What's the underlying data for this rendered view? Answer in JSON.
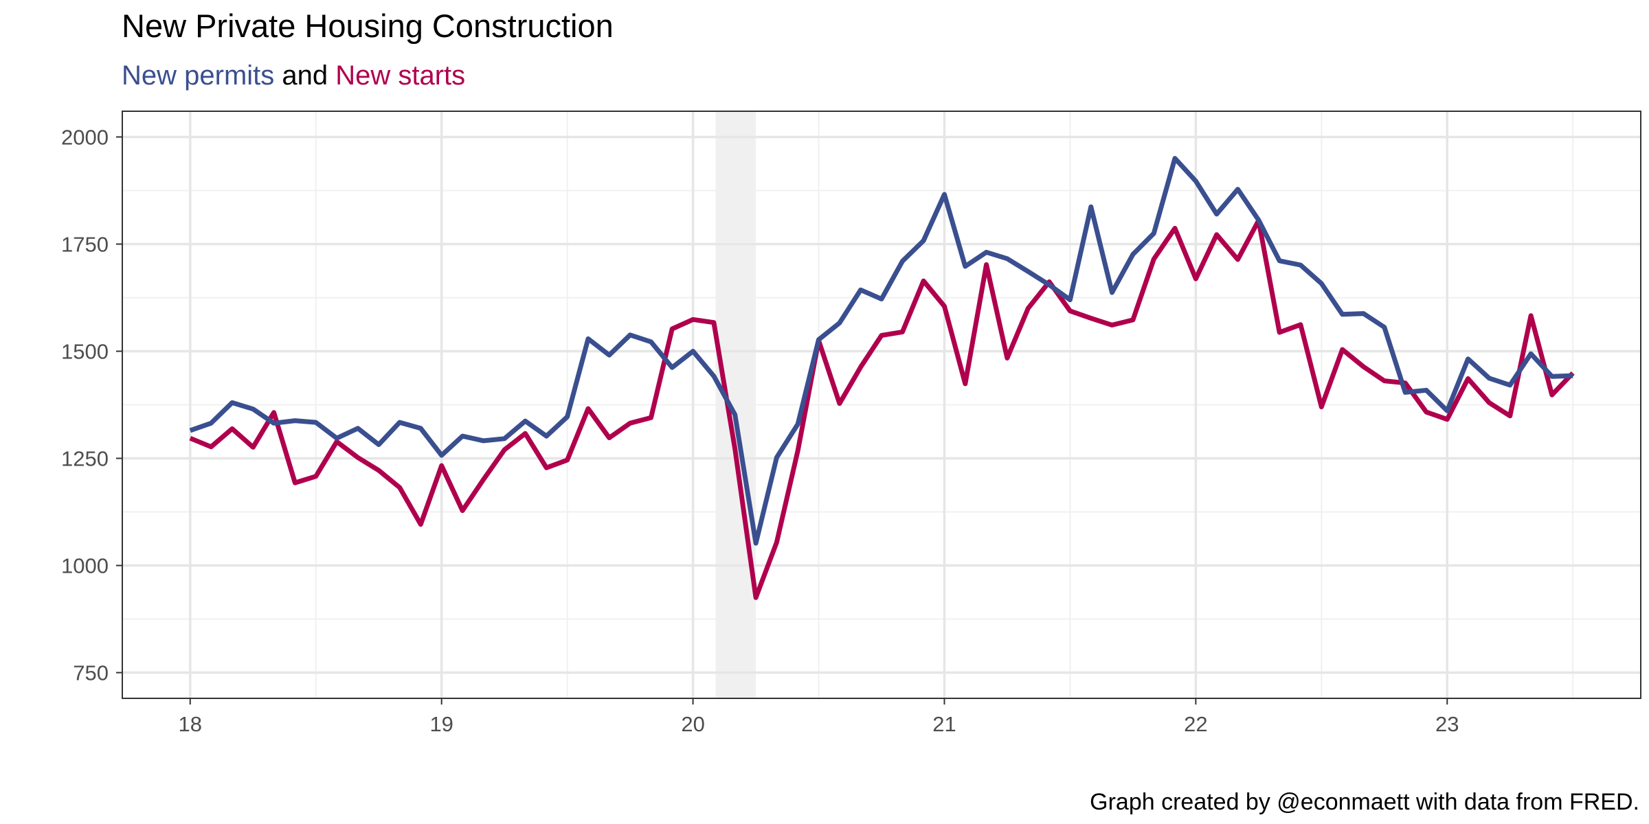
{
  "chart_data": {
    "type": "line",
    "title": "New Private Housing Construction",
    "subtitle": [
      {
        "text": "New permits",
        "color": "#3a4f8f"
      },
      {
        "text": " and ",
        "color": "#000000"
      },
      {
        "text": "New starts",
        "color": "#b0004d"
      }
    ],
    "caption": "Graph created by @econmaett with data from FRED.",
    "xlabel": "",
    "ylabel": "",
    "x_ticks": [
      18,
      19,
      20,
      21,
      22,
      23
    ],
    "x_tick_labels": [
      "18",
      "19",
      "20",
      "21",
      "22",
      "23"
    ],
    "y_ticks": [
      750,
      1000,
      1250,
      1500,
      1750,
      2000
    ],
    "y_tick_labels": [
      "750",
      "1000",
      "1250",
      "1500",
      "1750",
      "2000"
    ],
    "xlim": [
      17.73,
      23.77
    ],
    "ylim": [
      690,
      2060
    ],
    "grid": true,
    "shaded_regions": [
      {
        "x_start": 20.09,
        "x_end": 20.25,
        "color": "#f0f0f0"
      }
    ],
    "x": [
      18.0,
      18.083,
      18.167,
      18.25,
      18.333,
      18.417,
      18.5,
      18.583,
      18.667,
      18.75,
      18.833,
      18.917,
      19.0,
      19.083,
      19.167,
      19.25,
      19.333,
      19.417,
      19.5,
      19.583,
      19.667,
      19.75,
      19.833,
      19.917,
      20.0,
      20.083,
      20.167,
      20.25,
      20.333,
      20.417,
      20.5,
      20.583,
      20.667,
      20.75,
      20.833,
      20.917,
      21.0,
      21.083,
      21.167,
      21.25,
      21.333,
      21.417,
      21.5,
      21.583,
      21.667,
      21.75,
      21.833,
      21.917,
      22.0,
      22.083,
      22.167,
      22.25,
      22.333,
      22.417,
      22.5,
      22.583,
      22.667,
      22.75,
      22.833,
      22.917,
      23.0,
      23.083,
      23.167,
      23.25,
      23.333,
      23.417,
      23.5
    ],
    "series": [
      {
        "name": "New permits",
        "color": "#3a4f8f",
        "values": [
          1315,
          1332,
          1380,
          1365,
          1332,
          1338,
          1334,
          1297,
          1320,
          1282,
          1334,
          1320,
          1257,
          1302,
          1291,
          1296,
          1337,
          1302,
          1347,
          1529,
          1491,
          1538,
          1522,
          1462,
          1500,
          1442,
          1352,
          1052,
          1252,
          1330,
          1527,
          1566,
          1643,
          1622,
          1710,
          1758,
          1866,
          1698,
          1731,
          1716,
          1686,
          1655,
          1620,
          1837,
          1637,
          1726,
          1775,
          1950,
          1897,
          1820,
          1878,
          1806,
          1711,
          1701,
          1658,
          1586,
          1588,
          1556,
          1404,
          1409,
          1361,
          1482,
          1437,
          1421,
          1494,
          1441,
          1443
        ]
      },
      {
        "name": "New starts",
        "color": "#b0004d",
        "values": [
          1297,
          1277,
          1319,
          1276,
          1357,
          1193,
          1208,
          1289,
          1252,
          1222,
          1182,
          1096,
          1233,
          1128,
          1201,
          1270,
          1308,
          1228,
          1246,
          1366,
          1298,
          1332,
          1345,
          1552,
          1574,
          1567,
          1272,
          925,
          1054,
          1268,
          1525,
          1378,
          1463,
          1537,
          1545,
          1664,
          1605,
          1424,
          1702,
          1484,
          1600,
          1662,
          1594,
          1577,
          1561,
          1573,
          1715,
          1787,
          1669,
          1772,
          1714,
          1805,
          1544,
          1562,
          1370,
          1504,
          1464,
          1431,
          1426,
          1358,
          1341,
          1436,
          1380,
          1349,
          1583,
          1398,
          1449
        ]
      }
    ]
  }
}
